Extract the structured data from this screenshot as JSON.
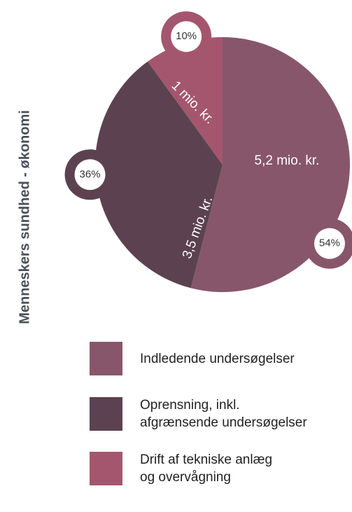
{
  "chart_data": {
    "type": "pie",
    "axis_title": "Menneskers sundhed - økonomi",
    "categories": [
      "Indledende undersøgelser",
      "Oprensning, inkl.\nafgrænsende undersøgelser",
      "Drift af tekniske anlæg\nog overvågning"
    ],
    "values": [
      54,
      36,
      10
    ],
    "value_labels": [
      "54%",
      "36%",
      "10%"
    ],
    "amount_labels": [
      "5,2 mio. kr.",
      "3,5 mio. kr.",
      "1 mio. kr."
    ],
    "colors": [
      "#87566a",
      "#5c4250",
      "#a4566f"
    ]
  }
}
